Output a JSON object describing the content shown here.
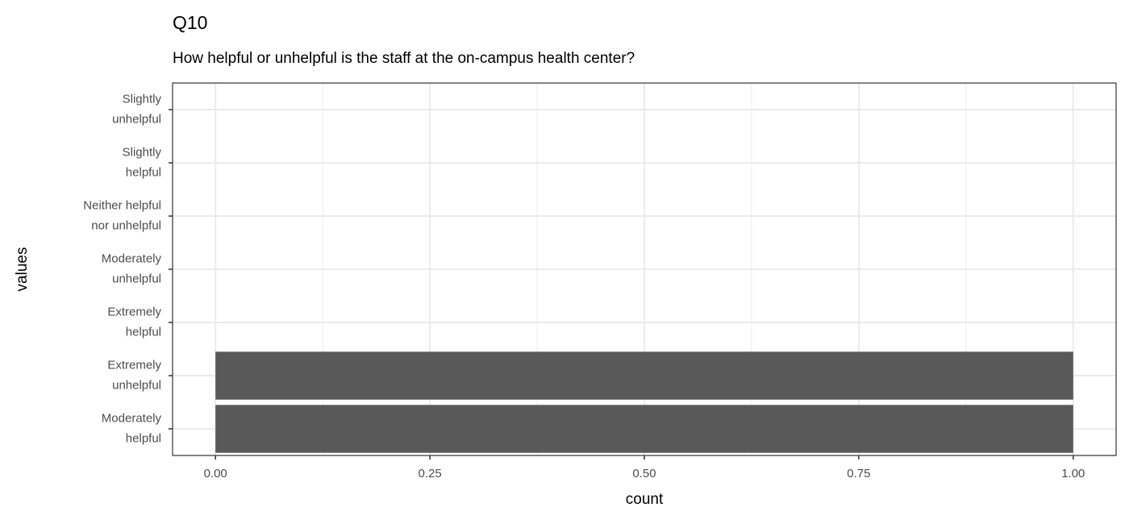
{
  "chart_data": {
    "type": "barh",
    "title": "Q10",
    "subtitle": "How helpful or unhelpful is the staff at the on-campus health center?",
    "x_label": "count",
    "y_label": "values",
    "categories": [
      "Moderately\nhelpful",
      "Extremely\nunhelpful",
      "Extremely\nhelpful",
      "Moderately\nunhelpful",
      "Neither helpful\nnor unhelpful",
      "Slightly\nhelpful",
      "Slightly\nunhelpful"
    ],
    "values": [
      1,
      1,
      0,
      0,
      0,
      0,
      0
    ],
    "color": "#595959",
    "xlim": [
      -0.05,
      1.05
    ],
    "xticks": [
      {
        "value": 0,
        "label": "0.00"
      },
      {
        "value": 0.25,
        "label": "0.25"
      },
      {
        "value": 0.5,
        "label": "0.50"
      },
      {
        "value": 0.75,
        "label": "0.75"
      },
      {
        "value": 1,
        "label": "1.00"
      }
    ],
    "grid": true
  }
}
